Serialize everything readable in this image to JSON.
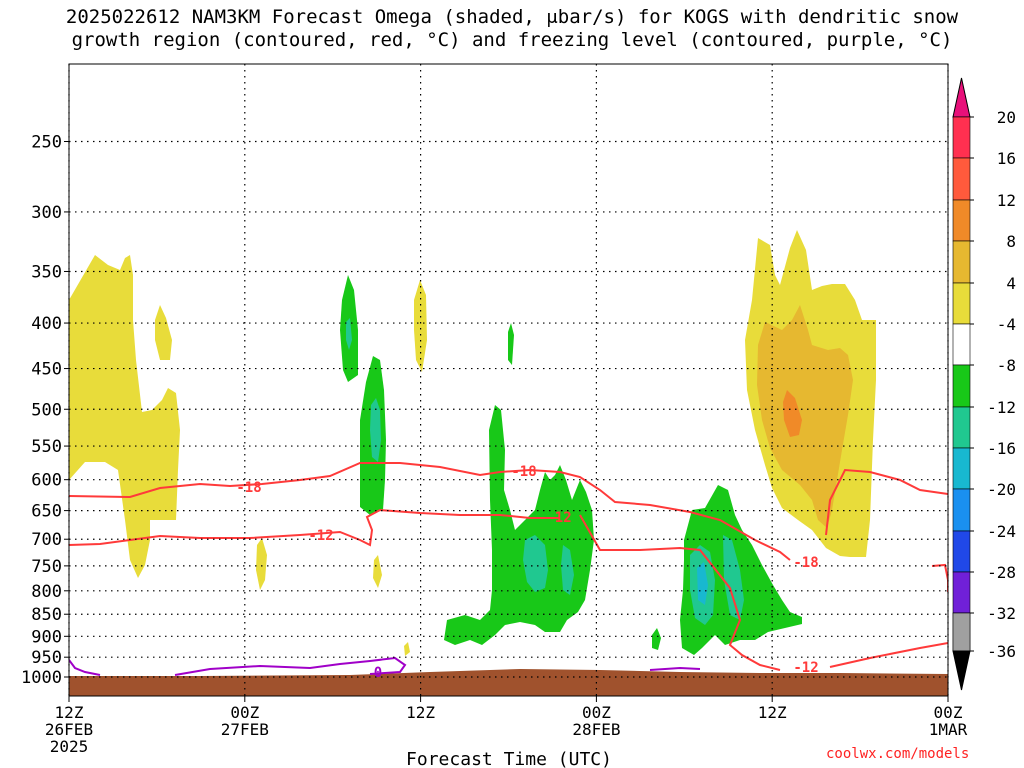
{
  "title_line1": "2025022612 NAM3KM Forecast Omega (shaded, μbar/s) for KOGS with dendritic snow",
  "title_line2": "growth region (contoured, red, °C) and freezing level (contoured, purple, °C)",
  "credit": "coolwx.com/models",
  "chart_data": {
    "type": "heatmap",
    "title": "2025022612 NAM3KM Forecast Omega (shaded, μbar/s) for KOGS with dendritic snow growth region (contoured, red, °C) and freezing level (contoured, purple, °C)",
    "xlabel": "Forecast Time (UTC)",
    "ylabel": "",
    "x_ticks": [
      {
        "hour": 0,
        "label": "12Z",
        "date": "26FEB",
        "year": "2025"
      },
      {
        "hour": 12,
        "label": "00Z",
        "date": "27FEB",
        "year": ""
      },
      {
        "hour": 24,
        "label": "12Z",
        "date": "",
        "year": ""
      },
      {
        "hour": 36,
        "label": "00Z",
        "date": "28FEB",
        "year": ""
      },
      {
        "hour": 48,
        "label": "12Z",
        "date": "",
        "year": ""
      },
      {
        "hour": 60,
        "label": "00Z",
        "date": "1MAR",
        "year": ""
      }
    ],
    "xlim": [
      0,
      60
    ],
    "y_ticks": [
      250,
      300,
      350,
      400,
      450,
      500,
      550,
      600,
      650,
      700,
      750,
      800,
      850,
      900,
      950,
      1000
    ],
    "ylim_hPa": [
      1030,
      200
    ],
    "y_scale": "log pressure",
    "grid": true,
    "colorbar": {
      "levels": [
        "20",
        "16",
        "12",
        "8",
        "4",
        "-4",
        "-8",
        "-12",
        "-16",
        "-20",
        "-24",
        "-28",
        "-32",
        "-36"
      ],
      "colors": [
        "#ff3050",
        "#ff5a3c",
        "#f08a28",
        "#e6b830",
        "#e8dc3a",
        "#ffffff",
        "#18c818",
        "#20c890",
        "#18b8d0",
        "#1a90f0",
        "#2048e8",
        "#7020d8",
        "#a018c8",
        "#a0a0a0"
      ],
      "top_color": "#e8107a",
      "bottom_color": "#000000"
    },
    "contour_labels": [
      {
        "text": "-18",
        "color": "#ff3a3a"
      },
      {
        "text": "-18",
        "color": "#ff3a3a"
      },
      {
        "text": "-18",
        "color": "#ff3a3a"
      },
      {
        "text": "-12",
        "color": "#ff3a3a"
      },
      {
        "text": "-12",
        "color": "#ff3a3a"
      },
      {
        "text": "-12",
        "color": "#ff3a3a"
      },
      {
        "text": "0",
        "color": "#a000c8"
      }
    ],
    "terrain_color": "#a0522d",
    "dgz_contour_color": "#ff3a3a",
    "freezing_contour_color": "#a000c8",
    "omega_colors": {
      "positive_4_8": "#e8dc3a",
      "positive_8_12": "#e6b830",
      "positive_12_16": "#f08a28",
      "negative_4_8": "#18c818",
      "negative_8_12": "#20c890",
      "negative_12_16": "#18b8d0",
      "negative_16_20": "#1a90f0"
    }
  }
}
